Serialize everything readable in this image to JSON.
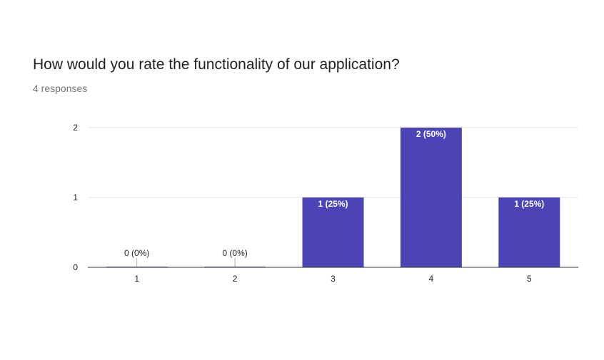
{
  "question": {
    "title": "How would you rate the functionality of our application?",
    "responses": "4 responses"
  },
  "colors": {
    "bar": "#4a44b6",
    "grid": "#e6e6e6",
    "axis": "#333333",
    "label_on_bar": "#ffffff",
    "label_off_bar": "#222222"
  },
  "chart_data": {
    "type": "bar",
    "categories": [
      "1",
      "2",
      "3",
      "4",
      "5"
    ],
    "values": [
      0,
      0,
      1,
      2,
      1
    ],
    "data_labels": [
      "0 (0%)",
      "0 (0%)",
      "1 (25%)",
      "2 (50%)",
      "1 (25%)"
    ],
    "y_ticks": [
      "0",
      "1",
      "2"
    ],
    "ylim": [
      0,
      2
    ],
    "grid": true,
    "title": "",
    "xlabel": "",
    "ylabel": ""
  }
}
